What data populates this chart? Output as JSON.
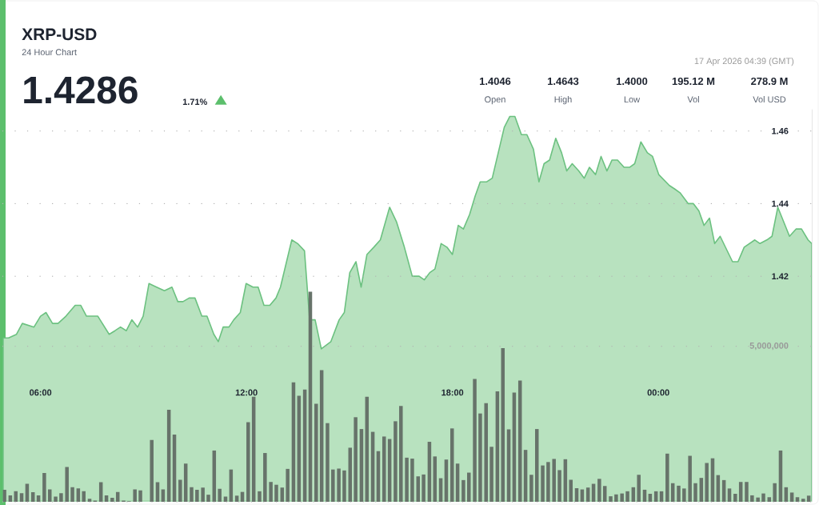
{
  "chart_data": {
    "type": "area",
    "title": "XRP-USD",
    "subtitle": "24 Hour Chart",
    "annotations": [
      "1.4286",
      "1.71%",
      "17 Apr 2026 04:39 (GMT)",
      "1.4046",
      "Open",
      "1.4643",
      "High",
      "1.4000",
      "Low",
      "195.12 M",
      "Vol",
      "278.9 M",
      "Vol USD"
    ],
    "xlim": [
      4.9,
      28.48
    ],
    "xticks": [
      {
        "value": 6,
        "label": "06:00"
      },
      {
        "value": 12,
        "label": "12:00"
      },
      {
        "value": 18,
        "label": "18:00"
      },
      {
        "value": 24,
        "label": "00:00"
      }
    ],
    "ylim": [
      1.358,
      1.466
    ],
    "yticks": [
      1.42,
      1.44,
      1.46
    ],
    "y2lim": [
      0,
      12600000
    ],
    "y2ticks": [
      {
        "value": 0,
        "label": null
      },
      {
        "value": 5000000,
        "label": "5,000,000"
      }
    ],
    "grid": "y",
    "series": [
      {
        "color": "#b8e2bf",
        "x": [
          4.91,
          5.07,
          5.3,
          5.47,
          5.81,
          6.0,
          6.16,
          6.35,
          6.51,
          6.74,
          7.01,
          7.17,
          7.34,
          7.51,
          7.67,
          8.0,
          8.17,
          8.33,
          8.5,
          8.66,
          8.83,
          8.99,
          9.16,
          9.38,
          9.61,
          9.83,
          10.0,
          10.15,
          10.33,
          10.5,
          10.7,
          10.85,
          11.05,
          11.18,
          11.32,
          11.49,
          11.63,
          11.82,
          11.99,
          12.19,
          12.34,
          12.51,
          12.68,
          12.86,
          12.99,
          13.32,
          13.49,
          13.69,
          13.84,
          14.0,
          14.18,
          14.46,
          14.7,
          14.85,
          15.01,
          15.19,
          15.34,
          15.51,
          15.71,
          15.9,
          16.17,
          16.37,
          16.6,
          16.83,
          17.03,
          17.18,
          17.34,
          17.49,
          17.67,
          17.84,
          18.0,
          18.17,
          18.32,
          18.5,
          18.66,
          18.81,
          19.0,
          19.16,
          19.51,
          19.67,
          19.82,
          20.01,
          20.17,
          20.36,
          20.52,
          20.67,
          20.83,
          21.01,
          21.18,
          21.33,
          21.49,
          21.68,
          21.84,
          21.99,
          22.17,
          22.33,
          22.5,
          22.65,
          22.81,
          23.0,
          23.16,
          23.31,
          23.49,
          23.68,
          23.83,
          24.01,
          24.32,
          24.48,
          24.63,
          24.87,
          25.02,
          25.18,
          25.33,
          25.49,
          25.64,
          25.8,
          26.16,
          26.32,
          26.5,
          26.81,
          26.96,
          27.16,
          27.31,
          27.48,
          27.82,
          28.01,
          28.17,
          28.36,
          28.47
        ],
        "values": [
          1.403,
          1.403,
          1.404,
          1.407,
          1.406,
          1.409,
          1.41,
          1.407,
          1.407,
          1.409,
          1.412,
          1.412,
          1.409,
          1.409,
          1.409,
          1.404,
          1.405,
          1.406,
          1.405,
          1.408,
          1.406,
          1.409,
          1.418,
          1.417,
          1.416,
          1.417,
          1.413,
          1.413,
          1.414,
          1.414,
          1.409,
          1.409,
          1.404,
          1.402,
          1.406,
          1.406,
          1.408,
          1.41,
          1.418,
          1.417,
          1.417,
          1.412,
          1.412,
          1.414,
          1.417,
          1.43,
          1.429,
          1.427,
          1.408,
          1.408,
          1.4,
          1.402,
          1.408,
          1.41,
          1.421,
          1.424,
          1.417,
          1.426,
          1.428,
          1.43,
          1.439,
          1.435,
          1.428,
          1.42,
          1.42,
          1.419,
          1.421,
          1.422,
          1.429,
          1.428,
          1.426,
          1.434,
          1.433,
          1.437,
          1.442,
          1.446,
          1.446,
          1.447,
          1.461,
          1.464,
          1.464,
          1.459,
          1.459,
          1.455,
          1.446,
          1.451,
          1.452,
          1.458,
          1.454,
          1.449,
          1.451,
          1.449,
          1.447,
          1.45,
          1.448,
          1.453,
          1.449,
          1.452,
          1.452,
          1.45,
          1.45,
          1.451,
          1.457,
          1.454,
          1.453,
          1.448,
          1.445,
          1.444,
          1.443,
          1.44,
          1.44,
          1.438,
          1.434,
          1.436,
          1.429,
          1.431,
          1.424,
          1.424,
          1.428,
          1.43,
          1.429,
          1.43,
          1.431,
          1.439,
          1.431,
          1.433,
          1.433,
          1.43,
          1.429
        ]
      },
      {
        "type": "bar",
        "axis": "y2",
        "color": "#67736a",
        "x": [
          4.95,
          5.12,
          5.28,
          5.45,
          5.61,
          5.78,
          5.94,
          6.11,
          6.27,
          6.44,
          6.6,
          6.77,
          6.93,
          7.1,
          7.26,
          7.43,
          7.59,
          7.76,
          7.92,
          8.09,
          8.25,
          8.42,
          8.58,
          8.75,
          8.91,
          9.08,
          9.24,
          9.41,
          9.57,
          9.74,
          9.9,
          10.07,
          10.23,
          10.4,
          10.56,
          10.73,
          10.89,
          11.06,
          11.22,
          11.39,
          11.55,
          11.72,
          11.88,
          12.05,
          12.21,
          12.38,
          12.54,
          12.71,
          12.87,
          13.04,
          13.2,
          13.37,
          13.53,
          13.7,
          13.86,
          14.03,
          14.19,
          14.36,
          14.52,
          14.69,
          14.85,
          15.02,
          15.18,
          15.35,
          15.51,
          15.68,
          15.84,
          16.01,
          16.17,
          16.34,
          16.5,
          16.67,
          16.83,
          17.0,
          17.16,
          17.33,
          17.49,
          17.66,
          17.82,
          17.99,
          18.15,
          18.32,
          18.48,
          18.65,
          18.81,
          18.98,
          19.14,
          19.31,
          19.47,
          19.64,
          19.8,
          19.97,
          20.13,
          20.3,
          20.46,
          20.63,
          20.79,
          20.96,
          21.12,
          21.29,
          21.45,
          21.62,
          21.78,
          21.95,
          22.11,
          22.28,
          22.44,
          22.61,
          22.77,
          22.94,
          23.1,
          23.27,
          23.43,
          23.6,
          23.76,
          23.93,
          24.09,
          24.26,
          24.42,
          24.59,
          24.75,
          24.92,
          25.08,
          25.25,
          25.41,
          25.58,
          25.74,
          25.91,
          26.07,
          26.24,
          26.4,
          26.57,
          26.73,
          26.9,
          27.06,
          27.23,
          27.39,
          27.56,
          27.72,
          27.89,
          28.05,
          28.22,
          28.38
        ],
        "values": [
          390000,
          210000,
          340000,
          280000,
          580000,
          310000,
          210000,
          930000,
          400000,
          170000,
          280000,
          1120000,
          470000,
          430000,
          340000,
          100000,
          40000,
          630000,
          210000,
          130000,
          320000,
          40000,
          20000,
          400000,
          370000,
          0,
          1990000,
          630000,
          400000,
          2960000,
          2160000,
          710000,
          1230000,
          470000,
          390000,
          460000,
          230000,
          1650000,
          420000,
          170000,
          1040000,
          200000,
          320000,
          2560000,
          3380000,
          340000,
          1570000,
          640000,
          550000,
          460000,
          1060000,
          3840000,
          3410000,
          3610000,
          6750000,
          3150000,
          4230000,
          2530000,
          1040000,
          1070000,
          1010000,
          1740000,
          2720000,
          2340000,
          3380000,
          2250000,
          1630000,
          2100000,
          2020000,
          2590000,
          3080000,
          1420000,
          1390000,
          820000,
          880000,
          1930000,
          1460000,
          760000,
          1360000,
          2360000,
          1230000,
          700000,
          940000,
          3950000,
          2840000,
          3170000,
          1770000,
          3550000,
          4940000,
          2330000,
          3510000,
          3900000,
          1670000,
          870000,
          2340000,
          1170000,
          1280000,
          1380000,
          1020000,
          1370000,
          710000,
          440000,
          400000,
          460000,
          580000,
          740000,
          510000,
          180000,
          240000,
          270000,
          340000,
          470000,
          870000,
          390000,
          260000,
          340000,
          340000,
          1550000,
          600000,
          520000,
          430000,
          1480000,
          600000,
          770000,
          1250000,
          1400000,
          860000,
          700000,
          430000,
          260000,
          640000,
          640000,
          210000,
          140000,
          270000,
          150000,
          600000,
          1650000,
          470000,
          300000,
          150000,
          100000,
          200000
        ]
      }
    ]
  }
}
